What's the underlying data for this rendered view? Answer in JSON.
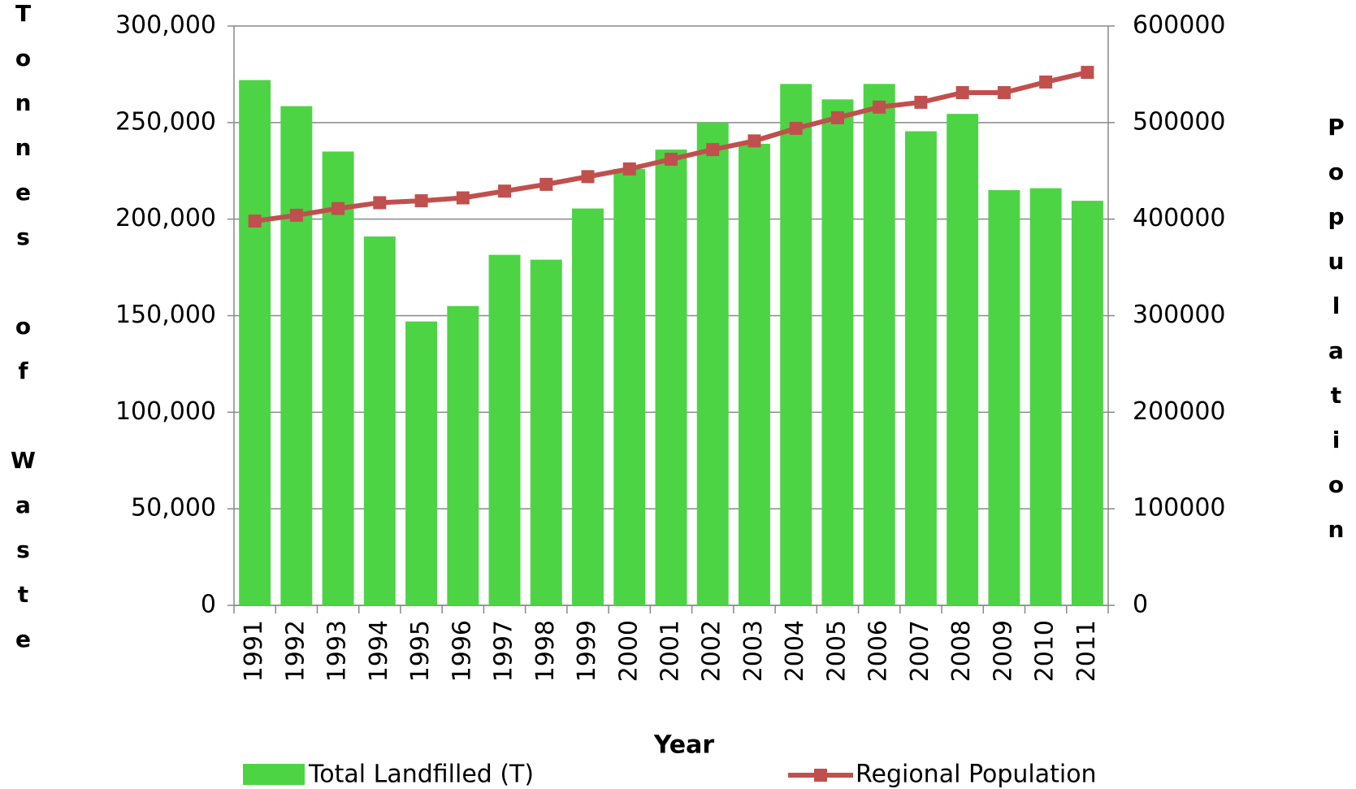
{
  "chart_data": {
    "type": "bar-line",
    "y_label": "Tonnes of Waste",
    "y2_label": "Population",
    "x_label": "Year",
    "categories": [
      "1991",
      "1992",
      "1993",
      "1994",
      "1995",
      "1996",
      "1997",
      "1998",
      "1999",
      "2000",
      "2001",
      "2002",
      "2003",
      "2004",
      "2005",
      "2006",
      "2007",
      "2008",
      "2009",
      "2010",
      "2011"
    ],
    "series": [
      {
        "name": "Total Landfilled (T)",
        "type": "bar",
        "color": "#4cd445",
        "values": [
          272000,
          258500,
          235000,
          191000,
          147000,
          155000,
          181500,
          179000,
          205500,
          226000,
          236000,
          250000,
          239000,
          270000,
          262000,
          270000,
          245500,
          254500,
          215000,
          216000,
          209500
        ]
      },
      {
        "name": "Regional Population",
        "type": "line",
        "axis": "y2",
        "color": "#c0504d",
        "values": [
          398000,
          404000,
          411000,
          417000,
          419000,
          422000,
          429000,
          436000,
          444000,
          452000,
          462000,
          472000,
          481000,
          494000,
          505000,
          516000,
          521000,
          531000,
          531000,
          542000,
          552000
        ]
      }
    ],
    "ylim": [
      0,
      300000
    ],
    "yticks": [
      0,
      {
        "value": 50000,
        "label": "50,000"
      },
      {
        "value": 100000,
        "label": "100,000"
      },
      {
        "value": 150000,
        "label": "150,000"
      },
      {
        "value": 200000,
        "label": "200,000"
      },
      {
        "value": 250000,
        "label": "250,000"
      },
      {
        "value": 300000,
        "label": "300,000"
      }
    ],
    "y2lim": [
      0,
      600000
    ],
    "y2ticks": [
      0,
      100000,
      200000,
      300000,
      400000,
      500000,
      600000
    ],
    "grid": true
  }
}
